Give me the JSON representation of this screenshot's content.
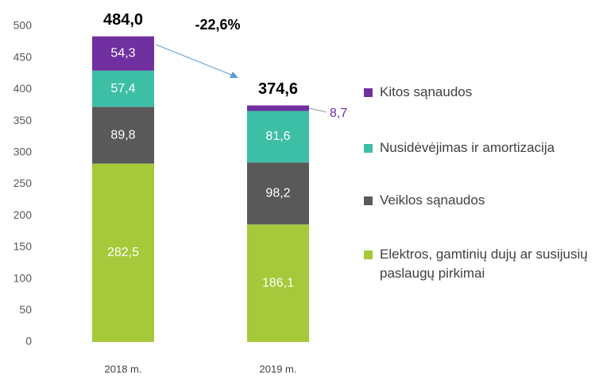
{
  "chart_data": {
    "type": "stacked_bar",
    "categories": [
      "2018 m.",
      "2019 m."
    ],
    "series": [
      {
        "name": "Elektros, gamtinių dujų ar susijusių paslaugų pirkimai",
        "color": "#a5c93a",
        "values": [
          282.5,
          186.1
        ],
        "value_labels": [
          "282,5",
          "186,1"
        ]
      },
      {
        "name": "Veiklos sąnaudos",
        "color": "#595959",
        "values": [
          89.8,
          98.2
        ],
        "value_labels": [
          "89,8",
          "98,2"
        ]
      },
      {
        "name": "Nusidėvėjimas ir amortizacija",
        "color": "#3dbfa6",
        "values": [
          57.4,
          81.6
        ],
        "value_labels": [
          "57,4",
          "81,6"
        ]
      },
      {
        "name": "Kitos sąnaudos",
        "color": "#7030a0",
        "values": [
          54.3,
          8.7
        ],
        "value_labels": [
          "54,3",
          "8,7"
        ]
      }
    ],
    "totals": [
      484.0,
      374.6
    ],
    "total_labels": [
      "484,0",
      "374,6"
    ],
    "change_label": "-22,6%",
    "ylim": [
      0,
      500
    ],
    "yticks": [
      0,
      50,
      100,
      150,
      200,
      250,
      300,
      350,
      400,
      450,
      500
    ],
    "legend": "right"
  }
}
